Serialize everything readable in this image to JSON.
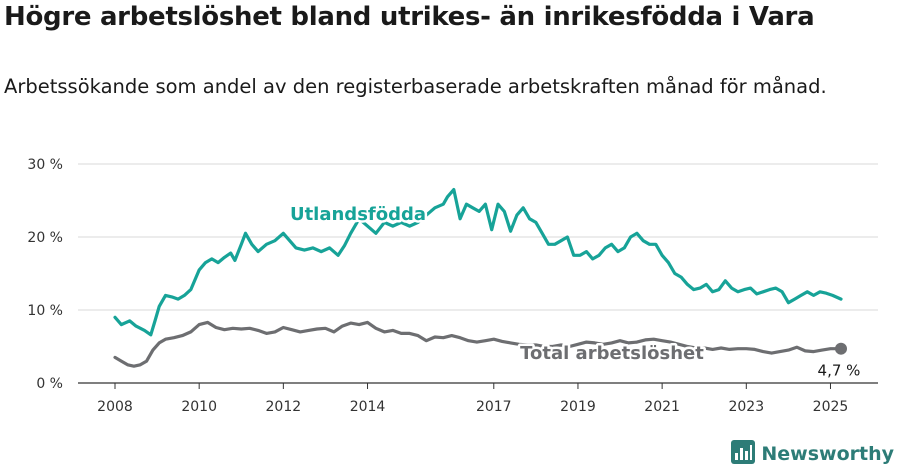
{
  "title": "Högre arbetslöshet bland utrikes- än inrikesfödda i Vara",
  "subtitle": "Arbetssökande som andel av den registerbaserade arbetskraften månad för månad.",
  "brand": {
    "name": "Newsworthy",
    "icon": "newsworthy-logo-icon"
  },
  "colors": {
    "utlandsfodda": "#17a398",
    "total": "#6d6e71",
    "grid": "#d9d9d9",
    "axis": "#333333"
  },
  "chart_data": {
    "type": "line",
    "title": "",
    "xlabel": "",
    "ylabel": "",
    "x_range": [
      2008,
      2025.25
    ],
    "ylim": [
      0,
      30
    ],
    "y_ticks": [
      0,
      10,
      20,
      30
    ],
    "y_tick_labels": [
      "0 %",
      "10 %",
      "20 %",
      "30 %"
    ],
    "x_ticks": [
      2008,
      2010,
      2012,
      2014,
      2017,
      2019,
      2021,
      2023,
      2025
    ],
    "x_tick_labels": [
      "2008",
      "2010",
      "2012",
      "2014",
      "2017",
      "2019",
      "2021",
      "2023",
      "2025"
    ],
    "grid": true,
    "series": [
      {
        "name": "Utlandsfödda",
        "x": [
          2008.0,
          2008.15,
          2008.35,
          2008.5,
          2008.7,
          2008.85,
          2008.95,
          2009.05,
          2009.2,
          2009.35,
          2009.5,
          2009.65,
          2009.8,
          2010.0,
          2010.15,
          2010.3,
          2010.45,
          2010.6,
          2010.75,
          2010.85,
          2011.0,
          2011.1,
          2011.25,
          2011.4,
          2011.6,
          2011.8,
          2012.0,
          2012.15,
          2012.3,
          2012.5,
          2012.7,
          2012.9,
          2013.1,
          2013.3,
          2013.45,
          2013.6,
          2013.8,
          2014.0,
          2014.2,
          2014.4,
          2014.6,
          2014.8,
          2015.0,
          2015.2,
          2015.4,
          2015.6,
          2015.8,
          2015.9,
          2016.05,
          2016.2,
          2016.35,
          2016.5,
          2016.65,
          2016.8,
          2016.95,
          2017.1,
          2017.25,
          2017.4,
          2017.55,
          2017.7,
          2017.85,
          2018.0,
          2018.15,
          2018.3,
          2018.45,
          2018.6,
          2018.75,
          2018.9,
          2019.05,
          2019.2,
          2019.35,
          2019.5,
          2019.65,
          2019.8,
          2019.95,
          2020.1,
          2020.25,
          2020.4,
          2020.55,
          2020.7,
          2020.85,
          2021.0,
          2021.15,
          2021.3,
          2021.45,
          2021.6,
          2021.75,
          2021.9,
          2022.05,
          2022.2,
          2022.35,
          2022.5,
          2022.65,
          2022.8,
          2022.95,
          2023.1,
          2023.25,
          2023.4,
          2023.55,
          2023.7,
          2023.85,
          2024.0,
          2024.15,
          2024.3,
          2024.45,
          2024.6,
          2024.75,
          2024.9,
          2025.05,
          2025.25
        ],
        "values": [
          9.0,
          8.0,
          8.5,
          7.8,
          7.2,
          6.6,
          8.5,
          10.5,
          12.0,
          11.8,
          11.5,
          12.0,
          12.8,
          15.5,
          16.5,
          17.0,
          16.5,
          17.2,
          17.8,
          16.8,
          19.0,
          20.5,
          19.0,
          18.0,
          19.0,
          19.5,
          20.5,
          19.5,
          18.5,
          18.2,
          18.5,
          18.0,
          18.5,
          17.5,
          18.8,
          20.5,
          22.5,
          21.5,
          20.5,
          22.0,
          21.5,
          22.0,
          21.5,
          22.0,
          23.0,
          24.0,
          24.5,
          25.5,
          26.5,
          22.5,
          24.5,
          24.0,
          23.5,
          24.5,
          21.0,
          24.5,
          23.5,
          20.8,
          23.0,
          24.0,
          22.5,
          22.0,
          20.5,
          19.0,
          19.0,
          19.5,
          20.0,
          17.5,
          17.5,
          18.0,
          17.0,
          17.5,
          18.5,
          19.0,
          18.0,
          18.5,
          20.0,
          20.5,
          19.5,
          19.0,
          19.0,
          17.5,
          16.5,
          15.0,
          14.5,
          13.5,
          12.8,
          13.0,
          13.5,
          12.5,
          12.8,
          14.0,
          13.0,
          12.5,
          12.8,
          13.0,
          12.2,
          12.5,
          12.8,
          13.0,
          12.5,
          11.0,
          11.5,
          12.0,
          12.5,
          12.0,
          12.5,
          12.3,
          12.0,
          11.5
        ],
        "label": "Utlandsfödda"
      },
      {
        "name": "Total arbetslöshet",
        "x": [
          2008.0,
          2008.15,
          2008.3,
          2008.45,
          2008.6,
          2008.75,
          2008.9,
          2009.05,
          2009.2,
          2009.4,
          2009.6,
          2009.8,
          2010.0,
          2010.2,
          2010.4,
          2010.6,
          2010.8,
          2011.0,
          2011.2,
          2011.4,
          2011.6,
          2011.8,
          2012.0,
          2012.2,
          2012.4,
          2012.6,
          2012.8,
          2013.0,
          2013.2,
          2013.4,
          2013.6,
          2013.8,
          2014.0,
          2014.2,
          2014.4,
          2014.6,
          2014.8,
          2015.0,
          2015.2,
          2015.4,
          2015.6,
          2015.8,
          2016.0,
          2016.2,
          2016.4,
          2016.6,
          2016.8,
          2017.0,
          2017.2,
          2017.4,
          2017.6,
          2017.8,
          2018.0,
          2018.2,
          2018.4,
          2018.6,
          2018.8,
          2019.0,
          2019.2,
          2019.4,
          2019.6,
          2019.8,
          2020.0,
          2020.2,
          2020.4,
          2020.6,
          2020.8,
          2021.0,
          2021.2,
          2021.4,
          2021.6,
          2021.8,
          2022.0,
          2022.2,
          2022.4,
          2022.6,
          2022.8,
          2023.0,
          2023.2,
          2023.4,
          2023.6,
          2023.8,
          2024.0,
          2024.2,
          2024.4,
          2024.6,
          2024.8,
          2025.0,
          2025.25
        ],
        "values": [
          3.5,
          3.0,
          2.5,
          2.3,
          2.5,
          3.0,
          4.5,
          5.5,
          6.0,
          6.2,
          6.5,
          7.0,
          8.0,
          8.3,
          7.6,
          7.3,
          7.5,
          7.4,
          7.5,
          7.2,
          6.8,
          7.0,
          7.6,
          7.3,
          7.0,
          7.2,
          7.4,
          7.5,
          7.0,
          7.8,
          8.2,
          8.0,
          8.3,
          7.5,
          7.0,
          7.2,
          6.8,
          6.8,
          6.5,
          5.8,
          6.3,
          6.2,
          6.5,
          6.2,
          5.8,
          5.6,
          5.8,
          6.0,
          5.7,
          5.5,
          5.3,
          5.2,
          5.2,
          5.0,
          5.0,
          5.2,
          5.0,
          5.3,
          5.6,
          5.5,
          5.3,
          5.5,
          5.8,
          5.5,
          5.6,
          5.9,
          6.0,
          5.8,
          5.6,
          5.3,
          5.0,
          4.8,
          4.8,
          4.6,
          4.8,
          4.6,
          4.7,
          4.7,
          4.6,
          4.3,
          4.1,
          4.3,
          4.5,
          4.9,
          4.4,
          4.3,
          4.5,
          4.7,
          4.7
        ],
        "label": "Total arbetslöshet",
        "end_label": "4,7 %"
      }
    ]
  }
}
